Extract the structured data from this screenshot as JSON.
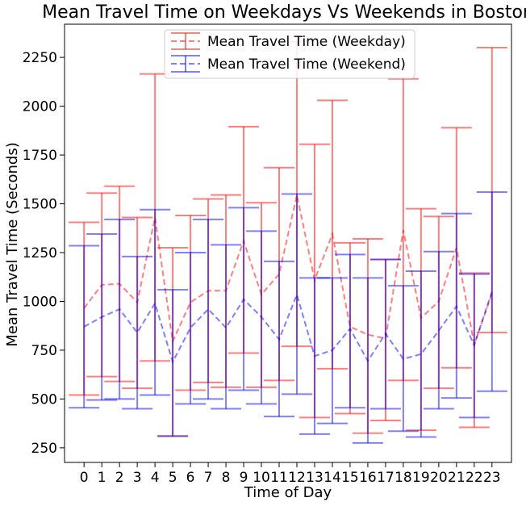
{
  "chart_data": {
    "type": "line",
    "title": "Mean Travel Time on Weekdays Vs Weekends in Boston",
    "xlabel": "Time of Day",
    "ylabel": "Mean Travel Time (Seconds)",
    "categories": [
      "0",
      "1",
      "2",
      "3",
      "4",
      "5",
      "6",
      "7",
      "8",
      "9",
      "10",
      "11",
      "12",
      "13",
      "14",
      "15",
      "16",
      "17",
      "18",
      "19",
      "20",
      "21",
      "22",
      "23"
    ],
    "x": [
      0,
      1,
      2,
      3,
      4,
      5,
      6,
      7,
      8,
      9,
      10,
      11,
      12,
      13,
      14,
      15,
      16,
      17,
      18,
      19,
      20,
      21,
      22,
      23
    ],
    "xlim": [
      -1.1,
      24.1
    ],
    "ylim": [
      175,
      2420
    ],
    "yticks": [
      250,
      500,
      750,
      1000,
      1250,
      1500,
      1750,
      2000,
      2250
    ],
    "grid": false,
    "legend_position": "top-center",
    "series": [
      {
        "name": "Mean Travel Time (Weekday)",
        "color": "#ff0000",
        "linestyle": "dashed",
        "values": [
          965,
          1085,
          1090,
          995,
          1430,
          795,
          995,
          1055,
          1055,
          1310,
          1035,
          1140,
          1545,
          1110,
          1345,
          870,
          830,
          810,
          1365,
          915,
          1000,
          1275,
          780,
          1040
        ],
        "err_lower": [
          520,
          615,
          590,
          555,
          695,
          310,
          545,
          585,
          560,
          735,
          560,
          595,
          770,
          405,
          655,
          425,
          325,
          390,
          595,
          340,
          555,
          660,
          355,
          840
        ],
        "err_upper": [
          1405,
          1555,
          1590,
          1430,
          2165,
          1275,
          1440,
          1525,
          1545,
          1895,
          1505,
          1685,
          2330,
          1805,
          2030,
          1300,
          1320,
          1215,
          2140,
          1475,
          1435,
          1890,
          1145,
          2300
        ]
      },
      {
        "name": "Mean Travel Time (Weekend)",
        "color": "#0000ff",
        "linestyle": "dashed",
        "values": [
          870,
          920,
          960,
          840,
          990,
          690,
          865,
          960,
          865,
          1010,
          920,
          805,
          1035,
          720,
          750,
          860,
          695,
          835,
          705,
          730,
          850,
          975,
          775,
          1050
        ],
        "err_lower": [
          455,
          495,
          500,
          450,
          520,
          310,
          475,
          500,
          450,
          545,
          475,
          410,
          525,
          320,
          375,
          455,
          275,
          450,
          335,
          305,
          450,
          505,
          405,
          540
        ],
        "err_upper": [
          1285,
          1345,
          1420,
          1230,
          1470,
          1060,
          1250,
          1420,
          1290,
          1480,
          1360,
          1205,
          1550,
          1120,
          1120,
          1240,
          1120,
          1215,
          1080,
          1155,
          1255,
          1450,
          1140,
          1560
        ]
      }
    ]
  }
}
